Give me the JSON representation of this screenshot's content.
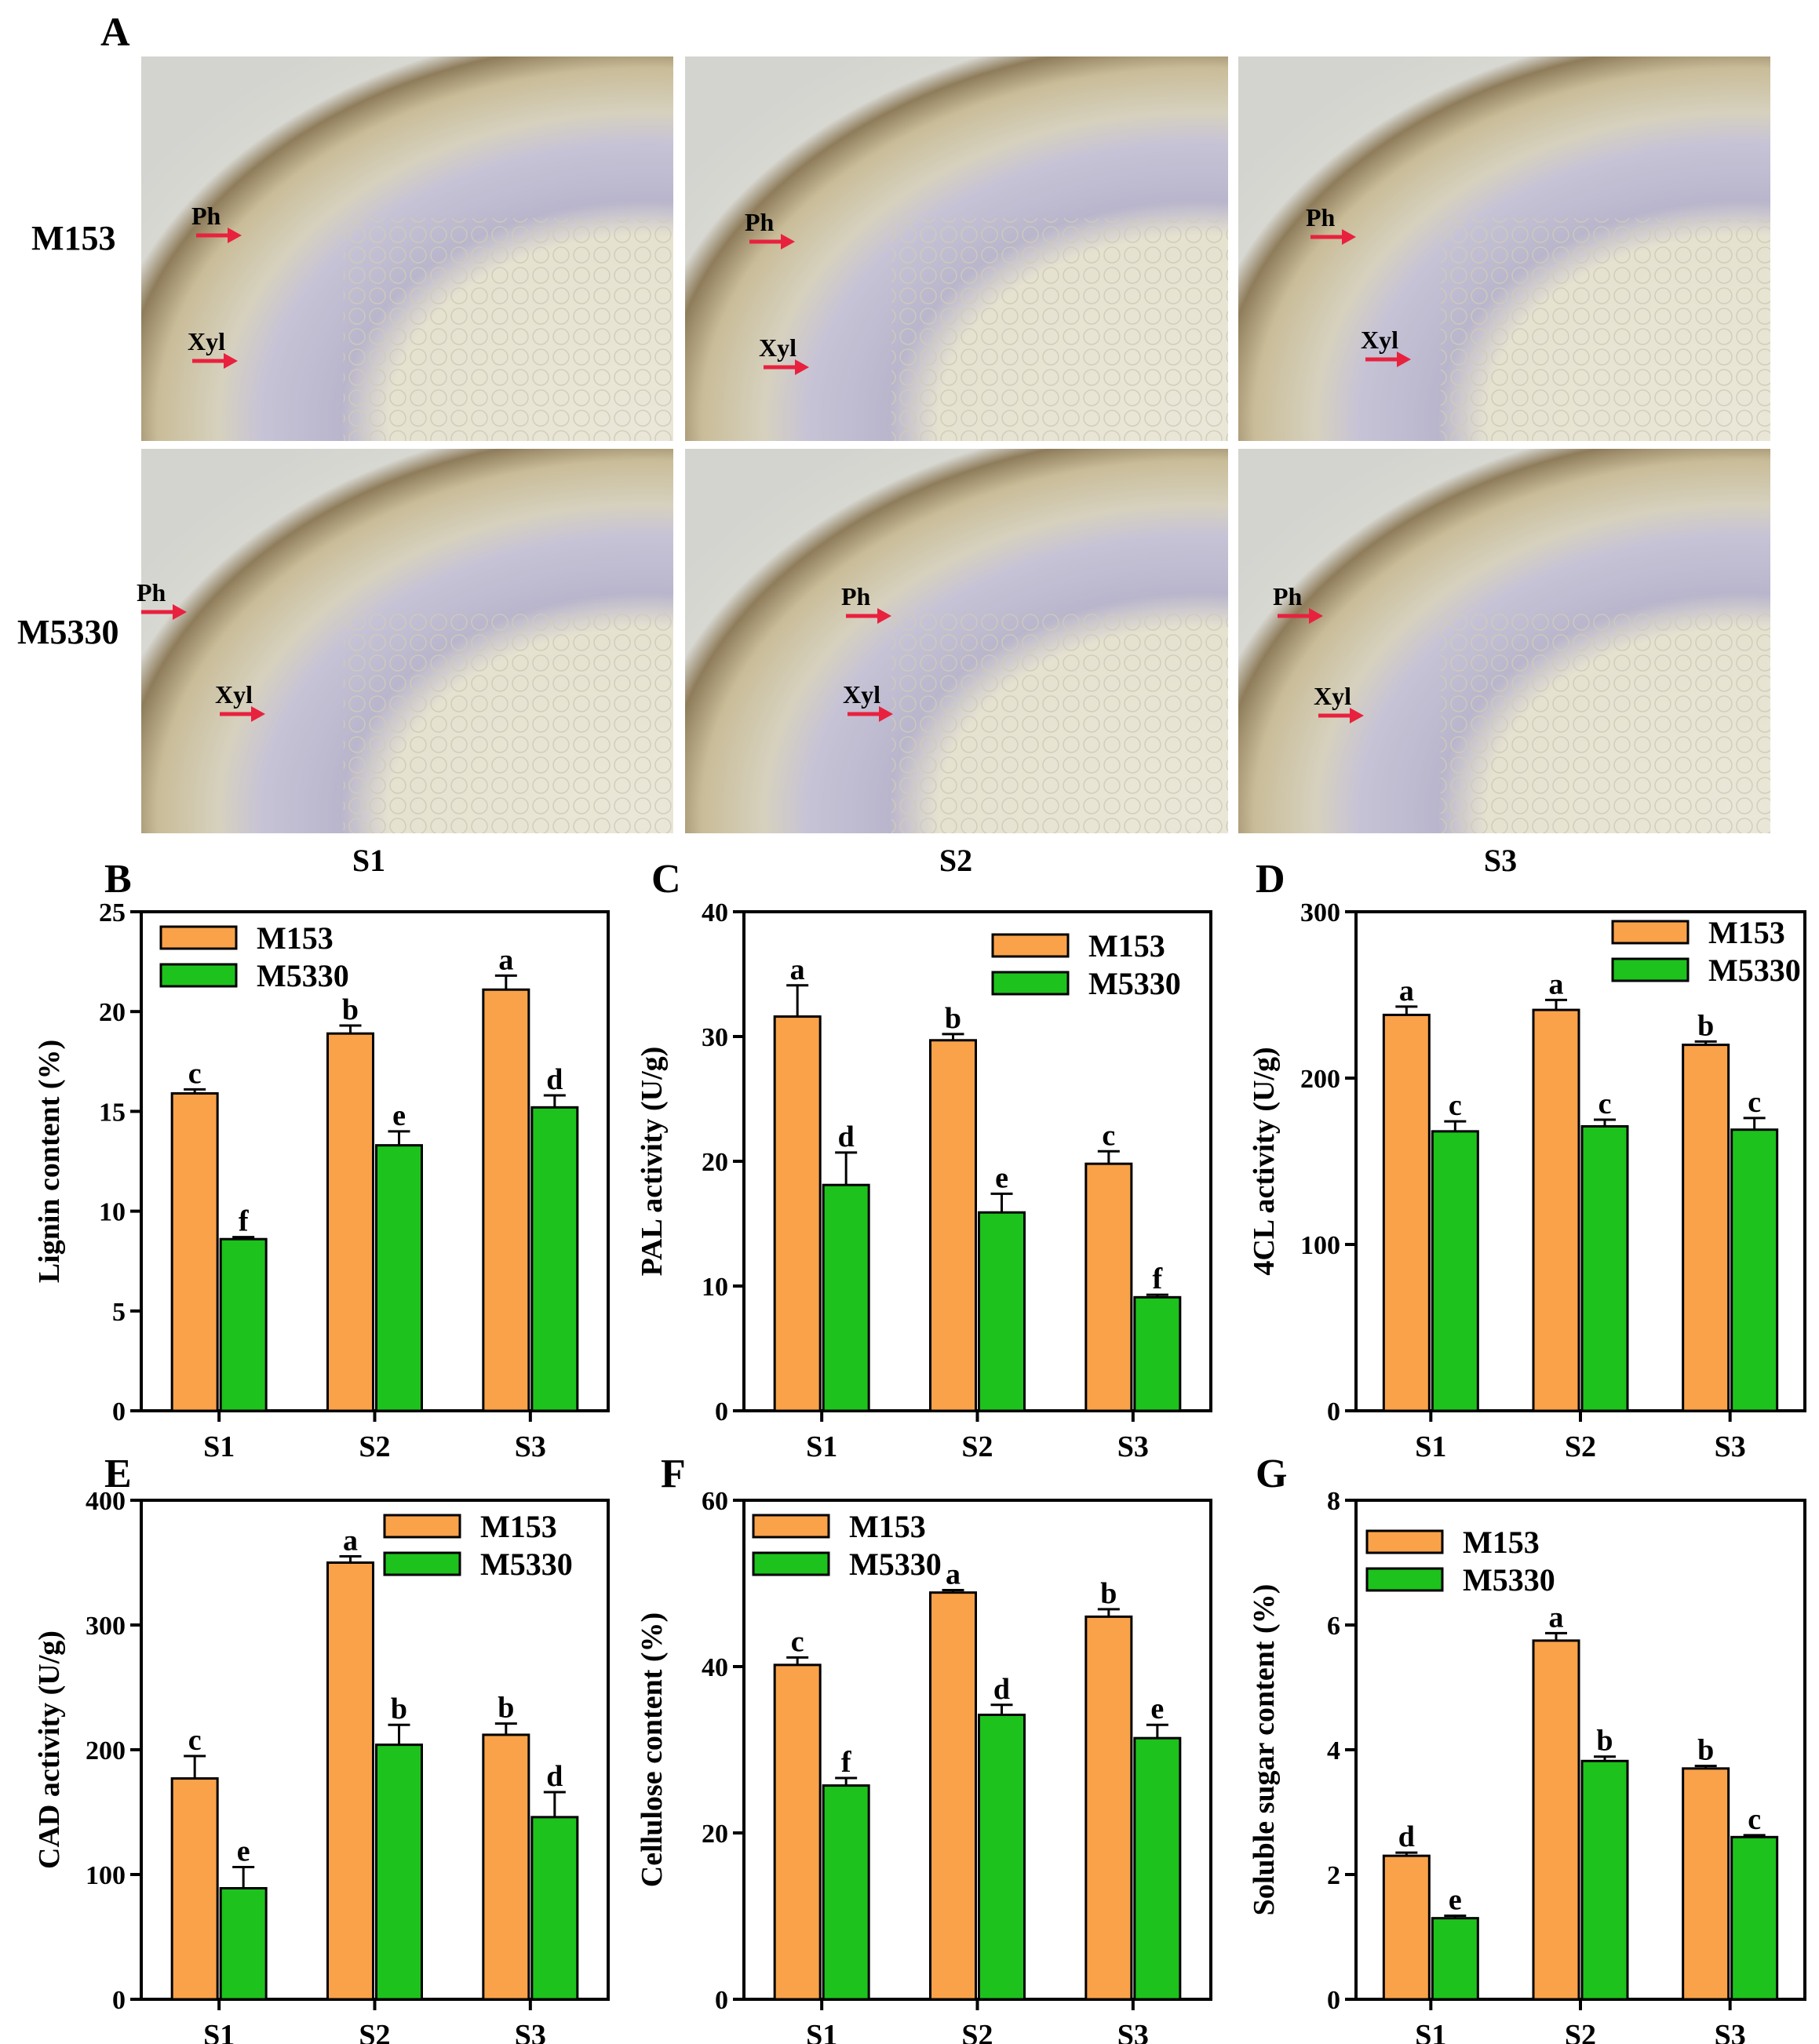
{
  "colors": {
    "m153": "#F9A24A",
    "m5330": "#1DC21D",
    "arrow": "#E8213E"
  },
  "micrographs": {
    "panel_letter": "A",
    "rows": [
      "M153",
      "M5330"
    ],
    "columns": [
      "S1",
      "S2",
      "S3"
    ],
    "arrow_labels": {
      "phloem": "Ph",
      "xylem": "Xyl"
    }
  },
  "chart_data": [
    {
      "panel": "B",
      "type": "bar",
      "categories": [
        "S1",
        "S2",
        "S3"
      ],
      "series": [
        {
          "name": "M153",
          "values": [
            15.9,
            18.9,
            21.1
          ],
          "errors": [
            0.2,
            0.4,
            0.7
          ],
          "labels": [
            "c",
            "b",
            "a"
          ]
        },
        {
          "name": "M5330",
          "values": [
            8.6,
            13.3,
            15.2
          ],
          "errors": [
            0.1,
            0.7,
            0.6
          ],
          "labels": [
            "f",
            "e",
            "d"
          ]
        }
      ],
      "ylabel": "Lignin content (%)",
      "ylim": [
        0,
        25
      ],
      "yticks": [
        0,
        5,
        10,
        15,
        20,
        25
      ],
      "legend": "top-left"
    },
    {
      "panel": "C",
      "type": "bar",
      "categories": [
        "S1",
        "S2",
        "S3"
      ],
      "series": [
        {
          "name": "M153",
          "values": [
            31.6,
            29.7,
            19.8
          ],
          "errors": [
            2.5,
            0.5,
            1.0
          ],
          "labels": [
            "a",
            "b",
            "c"
          ]
        },
        {
          "name": "M5330",
          "values": [
            18.1,
            15.9,
            9.1
          ],
          "errors": [
            2.6,
            1.5,
            0.2
          ],
          "labels": [
            "d",
            "e",
            "f"
          ]
        }
      ],
      "ylabel": "PAL activity (U/g)",
      "ylim": [
        0,
        40
      ],
      "yticks": [
        0,
        10,
        20,
        30,
        40
      ],
      "legend": "top-right"
    },
    {
      "panel": "D",
      "type": "bar",
      "categories": [
        "S1",
        "S2",
        "S3"
      ],
      "series": [
        {
          "name": "M153",
          "values": [
            238,
            241,
            220
          ],
          "errors": [
            5,
            6,
            2
          ],
          "labels": [
            "a",
            "a",
            "b"
          ]
        },
        {
          "name": "M5330",
          "values": [
            168,
            171,
            169
          ],
          "errors": [
            6,
            4,
            7
          ],
          "labels": [
            "c",
            "c",
            "c"
          ]
        }
      ],
      "ylabel": "4CL activity (U/g)",
      "ylim": [
        0,
        300
      ],
      "yticks": [
        0,
        100,
        200,
        300
      ],
      "legend": "top-right"
    },
    {
      "panel": "E",
      "type": "bar",
      "categories": [
        "S1",
        "S2",
        "S3"
      ],
      "series": [
        {
          "name": "M153",
          "values": [
            177,
            350,
            212
          ],
          "errors": [
            18,
            5,
            9
          ],
          "labels": [
            "c",
            "a",
            "b"
          ]
        },
        {
          "name": "M5330",
          "values": [
            89,
            204,
            146
          ],
          "errors": [
            17,
            16,
            20
          ],
          "labels": [
            "e",
            "b",
            "d"
          ]
        }
      ],
      "ylabel": "CAD activity (U/g)",
      "ylim": [
        0,
        400
      ],
      "yticks": [
        0,
        100,
        200,
        300,
        400
      ],
      "legend": "top-right"
    },
    {
      "panel": "F",
      "type": "bar",
      "categories": [
        "S1",
        "S2",
        "S3"
      ],
      "series": [
        {
          "name": "M153",
          "values": [
            40.2,
            48.9,
            46.0
          ],
          "errors": [
            0.9,
            0.3,
            0.9
          ],
          "labels": [
            "c",
            "a",
            "b"
          ]
        },
        {
          "name": "M5330",
          "values": [
            25.7,
            34.2,
            31.4
          ],
          "errors": [
            0.9,
            1.2,
            1.6
          ],
          "labels": [
            "f",
            "d",
            "e"
          ]
        }
      ],
      "ylabel": "Cellulose content (%)",
      "ylim": [
        0,
        60
      ],
      "yticks": [
        0,
        20,
        40,
        60
      ],
      "legend": "top-left"
    },
    {
      "panel": "G",
      "type": "bar",
      "categories": [
        "S1",
        "S2",
        "S3"
      ],
      "series": [
        {
          "name": "M153",
          "values": [
            2.3,
            5.75,
            3.7
          ],
          "errors": [
            0.05,
            0.12,
            0.04
          ],
          "labels": [
            "d",
            "a",
            "b"
          ]
        },
        {
          "name": "M5330",
          "values": [
            1.3,
            3.82,
            2.6
          ],
          "errors": [
            0.04,
            0.07,
            0.03
          ],
          "labels": [
            "e",
            "b",
            "c"
          ]
        }
      ],
      "ylabel": "Soluble sugar content (%)",
      "ylim": [
        0,
        8
      ],
      "yticks": [
        0,
        2,
        4,
        6,
        8
      ],
      "legend": "top-left"
    }
  ]
}
